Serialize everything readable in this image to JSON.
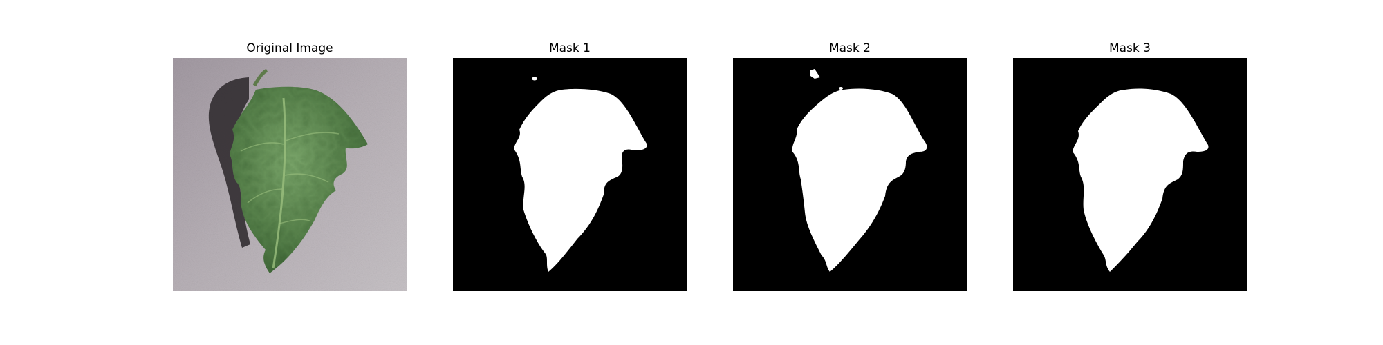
{
  "figure": {
    "panels": [
      {
        "title": "Original Image",
        "kind": "photo",
        "depicts": "green-tomato-leaf-on-gray-surface"
      },
      {
        "title": "Mask 1",
        "kind": "mask",
        "depicts": "binary-leaf-mask"
      },
      {
        "title": "Mask 2",
        "kind": "mask",
        "depicts": "binary-leaf-mask"
      },
      {
        "title": "Mask 3",
        "kind": "mask",
        "depicts": "binary-leaf-mask"
      }
    ]
  },
  "colors": {
    "background": "#ffffff",
    "mask_background": "#000000",
    "mask_foreground": "#ffffff",
    "leaf_dark": "#3f6a38",
    "leaf_light": "#6f9a60",
    "surface": "#b5aeb4",
    "shadow": "#2a2629"
  }
}
